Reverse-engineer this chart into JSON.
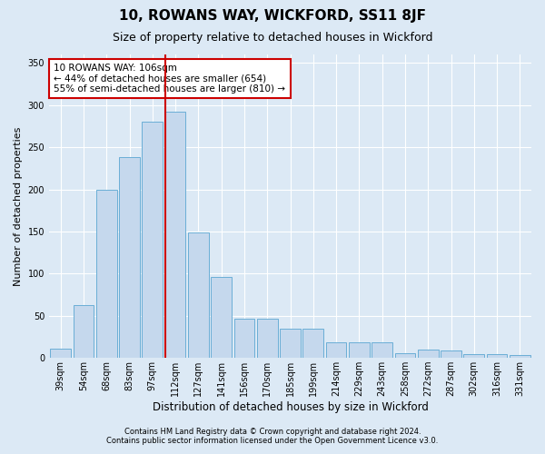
{
  "title": "10, ROWANS WAY, WICKFORD, SS11 8JF",
  "subtitle": "Size of property relative to detached houses in Wickford",
  "xlabel": "Distribution of detached houses by size in Wickford",
  "ylabel": "Number of detached properties",
  "categories": [
    "39sqm",
    "54sqm",
    "68sqm",
    "83sqm",
    "97sqm",
    "112sqm",
    "127sqm",
    "141sqm",
    "156sqm",
    "170sqm",
    "185sqm",
    "199sqm",
    "214sqm",
    "229sqm",
    "243sqm",
    "258sqm",
    "272sqm",
    "287sqm",
    "302sqm",
    "316sqm",
    "331sqm"
  ],
  "values": [
    11,
    63,
    200,
    238,
    280,
    292,
    149,
    96,
    46,
    46,
    35,
    35,
    19,
    19,
    19,
    6,
    10,
    9,
    5,
    5,
    3
  ],
  "bar_color": "#c5d8ed",
  "bar_edge_color": "#6aaed6",
  "annotation_text_line1": "10 ROWANS WAY: 106sqm",
  "annotation_text_line2": "← 44% of detached houses are smaller (654)",
  "annotation_text_line3": "55% of semi-detached houses are larger (810) →",
  "annotation_box_color": "#ffffff",
  "annotation_box_edge_color": "#cc0000",
  "vline_color": "#cc0000",
  "vline_x_index": 5,
  "footer_line1": "Contains HM Land Registry data © Crown copyright and database right 2024.",
  "footer_line2": "Contains public sector information licensed under the Open Government Licence v3.0.",
  "bg_color": "#dce9f5",
  "plot_bg_color": "#dce9f5",
  "ylim": [
    0,
    360
  ],
  "grid_color": "#ffffff",
  "title_fontsize": 11,
  "subtitle_fontsize": 9,
  "tick_fontsize": 7,
  "ylabel_fontsize": 8,
  "xlabel_fontsize": 8.5,
  "footer_fontsize": 6
}
